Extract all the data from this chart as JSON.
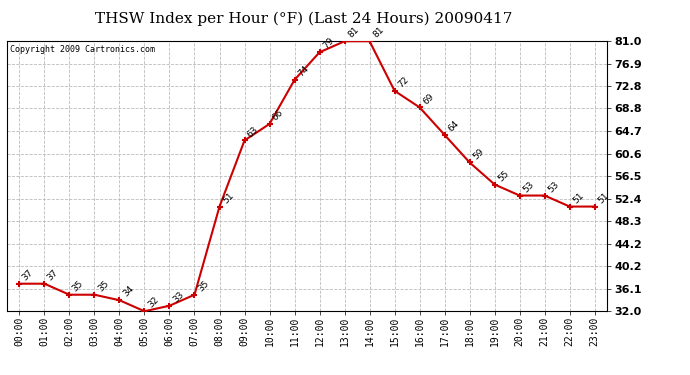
{
  "title": "THSW Index per Hour (°F) (Last 24 Hours) 20090417",
  "copyright": "Copyright 2009 Cartronics.com",
  "hours": [
    "00:00",
    "01:00",
    "02:00",
    "03:00",
    "04:00",
    "05:00",
    "06:00",
    "07:00",
    "08:00",
    "09:00",
    "10:00",
    "11:00",
    "12:00",
    "13:00",
    "14:00",
    "15:00",
    "16:00",
    "17:00",
    "18:00",
    "19:00",
    "20:00",
    "21:00",
    "22:00",
    "23:00"
  ],
  "values": [
    37,
    37,
    35,
    35,
    34,
    32,
    33,
    35,
    51,
    63,
    66,
    74,
    79,
    81,
    81,
    72,
    69,
    64,
    59,
    55,
    53,
    53,
    51,
    51
  ],
  "ylim_min": 32.0,
  "ylim_max": 81.0,
  "yticks": [
    32.0,
    36.1,
    40.2,
    44.2,
    48.3,
    52.4,
    56.5,
    60.6,
    64.7,
    68.8,
    72.8,
    76.9,
    81.0
  ],
  "line_color": "#cc0000",
  "marker_color": "#cc0000",
  "bg_color": "#ffffff",
  "grid_color": "#bbbbbb",
  "title_fontsize": 11,
  "label_fontsize": 7,
  "annot_fontsize": 6.5,
  "copyright_fontsize": 6
}
